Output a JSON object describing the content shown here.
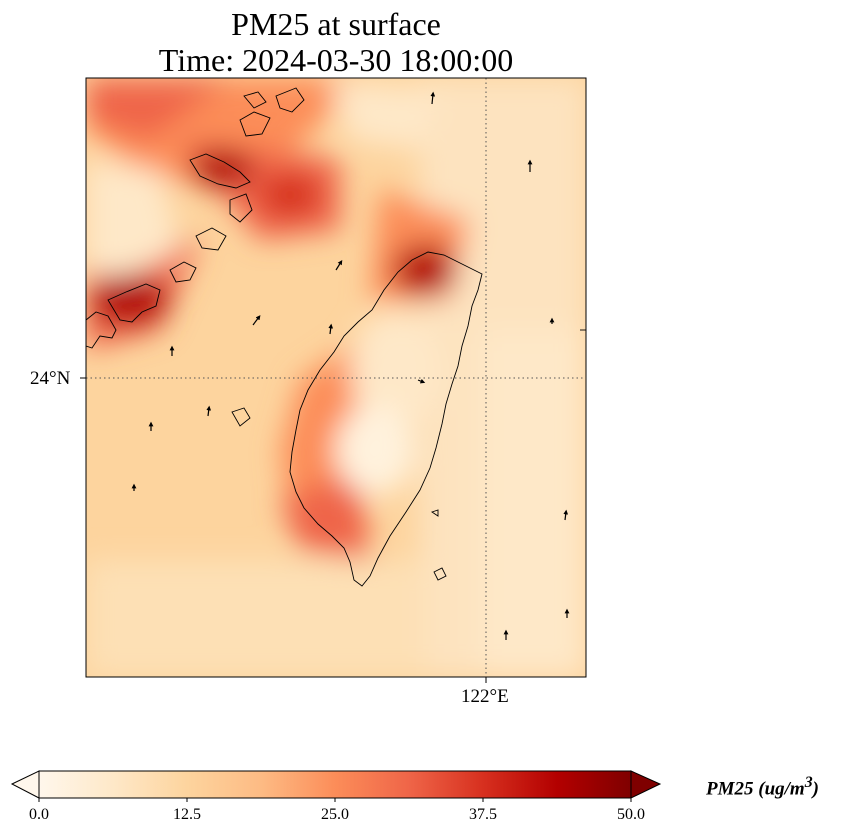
{
  "title": {
    "line1": "PM25 at surface",
    "line2": "Time: 2024-03-30 18:00:00"
  },
  "map": {
    "lat_tick_label": "24°N",
    "lon_tick_label": "122°E",
    "gridline_style": "dotted",
    "features": [
      "pm25-concentration-field",
      "coastlines",
      "wind-vectors"
    ]
  },
  "colorbar": {
    "label_main": "PM25 (ug/m",
    "label_sup": "3",
    "label_close": ")",
    "cmap": "OrRd",
    "ticks": [
      "0.0",
      "12.5",
      "25.0",
      "37.5",
      "50.0"
    ],
    "vmin": 0.0,
    "vmax": 50.0,
    "extend": "both",
    "colors": [
      "#fff7ec",
      "#fee8c8",
      "#fdd49e",
      "#fdbb84",
      "#fc8d59",
      "#ef6548",
      "#d7301f",
      "#b30000",
      "#7f0000"
    ]
  }
}
